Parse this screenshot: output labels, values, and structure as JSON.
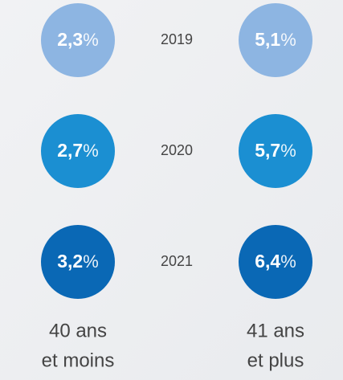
{
  "unit": "%",
  "rows": [
    {
      "year": "2019",
      "left": "2,3",
      "right": "5,1",
      "color": "#8db5e2"
    },
    {
      "year": "2020",
      "left": "2,7",
      "right": "5,7",
      "color": "#1b8fd2"
    },
    {
      "year": "2021",
      "left": "3,2",
      "right": "6,4",
      "color": "#0a68b5"
    }
  ],
  "groups": {
    "left": [
      "40 ans",
      "et moins"
    ],
    "right": [
      "41 ans",
      "et plus"
    ]
  }
}
